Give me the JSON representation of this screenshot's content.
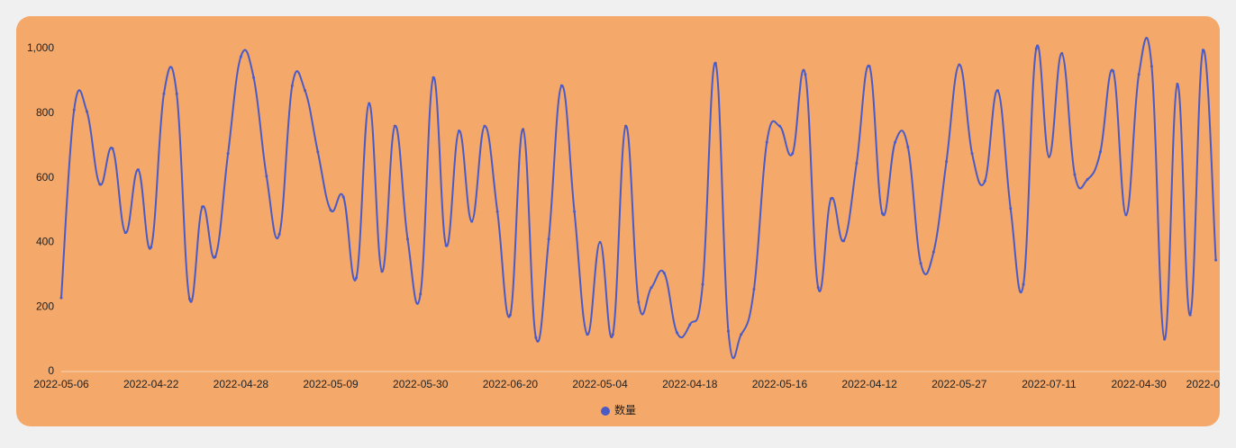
{
  "chart_data": {
    "type": "line",
    "categories": [
      "2022-05-06",
      null,
      null,
      null,
      null,
      null,
      null,
      "2022-04-22",
      null,
      null,
      null,
      null,
      null,
      null,
      "2022-04-28",
      null,
      null,
      null,
      null,
      null,
      null,
      "2022-05-09",
      null,
      null,
      null,
      null,
      null,
      null,
      "2022-05-30",
      null,
      null,
      null,
      null,
      null,
      null,
      "2022-06-20",
      null,
      null,
      null,
      null,
      null,
      null,
      "2022-05-04",
      null,
      null,
      null,
      null,
      null,
      null,
      "2022-04-18",
      null,
      null,
      null,
      null,
      null,
      null,
      "2022-05-16",
      null,
      null,
      null,
      null,
      null,
      null,
      "2022-04-12",
      null,
      null,
      null,
      null,
      null,
      null,
      "2022-05-27",
      null,
      null,
      null,
      null,
      null,
      null,
      "2022-07-11",
      null,
      null,
      null,
      null,
      null,
      null,
      "2022-04-30",
      null,
      null,
      null,
      null,
      "2022-0",
      null
    ],
    "series": [
      {
        "name": "数量",
        "color": "#4a5bc6",
        "values": [
          228,
          810,
          805,
          580,
          690,
          430,
          625,
          385,
          860,
          860,
          225,
          510,
          355,
          675,
          975,
          910,
          605,
          425,
          885,
          870,
          680,
          500,
          540,
          290,
          830,
          310,
          760,
          410,
          240,
          910,
          390,
          745,
          465,
          760,
          495,
          175,
          750,
          105,
          410,
          885,
          495,
          115,
          400,
          115,
          760,
          215,
          260,
          305,
          120,
          145,
          270,
          955,
          125,
          115,
          255,
          710,
          760,
          675,
          920,
          260,
          535,
          405,
          645,
          945,
          490,
          710,
          695,
          335,
          370,
          650,
          950,
          675,
          590,
          870,
          505,
          270,
          1000,
          665,
          985,
          610,
          595,
          680,
          930,
          485,
          920,
          945,
          100,
          890,
          175,
          995,
          345
        ]
      }
    ],
    "ylim": [
      0,
      1000
    ],
    "yticks": [
      0,
      200,
      400,
      600,
      800,
      {
        "value": 1000,
        "label": "1,000"
      }
    ],
    "background": "#f4a869"
  }
}
